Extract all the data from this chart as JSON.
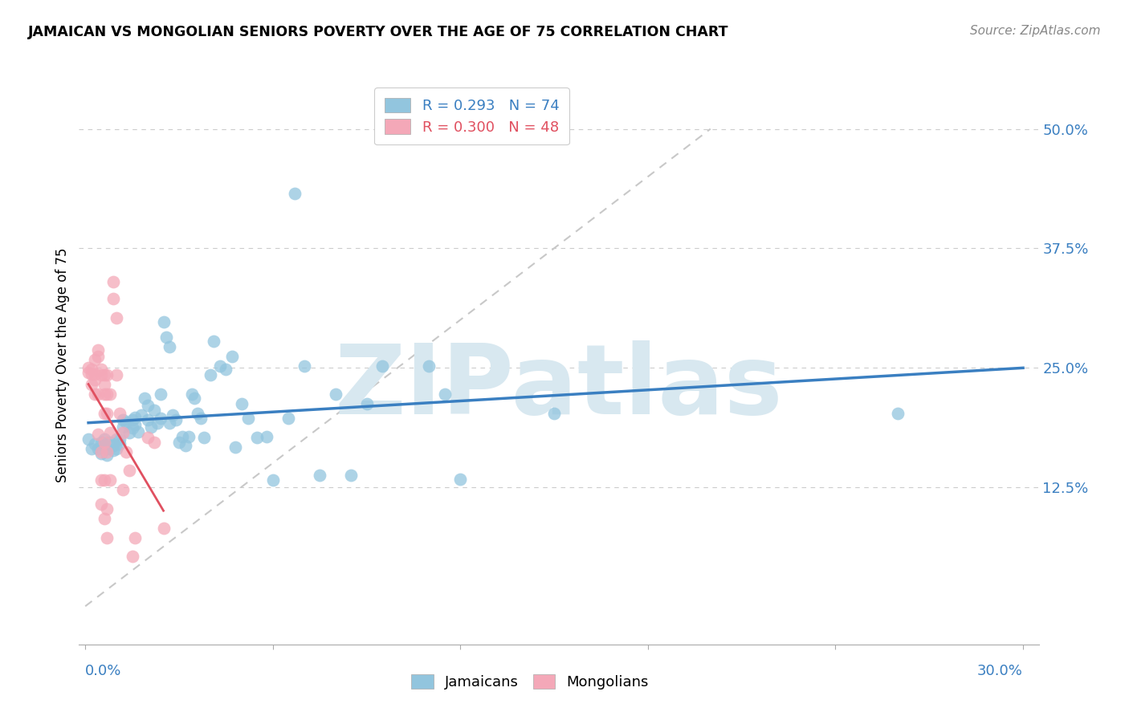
{
  "title": "JAMAICAN VS MONGOLIAN SENIORS POVERTY OVER THE AGE OF 75 CORRELATION CHART",
  "source": "Source: ZipAtlas.com",
  "ylabel": "Seniors Poverty Over the Age of 75",
  "ytick_vals": [
    0.125,
    0.25,
    0.375,
    0.5
  ],
  "ytick_labels": [
    "12.5%",
    "25.0%",
    "37.5%",
    "50.0%"
  ],
  "xlim": [
    -0.002,
    0.305
  ],
  "ylim": [
    -0.04,
    0.545
  ],
  "jamaicans_color": "#92c5de",
  "mongolians_color": "#f4a8b8",
  "trend_j_color": "#3a7fc1",
  "trend_m_color": "#e05060",
  "diag_color": "#c8c8c8",
  "watermark": "ZIPatlas",
  "watermark_color": "#d8e8f0",
  "jamaicans": [
    [
      0.001,
      0.175
    ],
    [
      0.002,
      0.165
    ],
    [
      0.003,
      0.17
    ],
    [
      0.004,
      0.165
    ],
    [
      0.005,
      0.172
    ],
    [
      0.005,
      0.16
    ],
    [
      0.006,
      0.168
    ],
    [
      0.006,
      0.175
    ],
    [
      0.007,
      0.165
    ],
    [
      0.007,
      0.158
    ],
    [
      0.008,
      0.172
    ],
    [
      0.009,
      0.168
    ],
    [
      0.009,
      0.163
    ],
    [
      0.01,
      0.175
    ],
    [
      0.01,
      0.165
    ],
    [
      0.011,
      0.175
    ],
    [
      0.011,
      0.17
    ],
    [
      0.012,
      0.195
    ],
    [
      0.012,
      0.188
    ],
    [
      0.013,
      0.193
    ],
    [
      0.014,
      0.182
    ],
    [
      0.015,
      0.195
    ],
    [
      0.015,
      0.187
    ],
    [
      0.016,
      0.198
    ],
    [
      0.016,
      0.19
    ],
    [
      0.017,
      0.183
    ],
    [
      0.018,
      0.2
    ],
    [
      0.019,
      0.218
    ],
    [
      0.02,
      0.21
    ],
    [
      0.02,
      0.195
    ],
    [
      0.021,
      0.188
    ],
    [
      0.022,
      0.205
    ],
    [
      0.023,
      0.192
    ],
    [
      0.024,
      0.222
    ],
    [
      0.024,
      0.197
    ],
    [
      0.025,
      0.298
    ],
    [
      0.026,
      0.282
    ],
    [
      0.027,
      0.272
    ],
    [
      0.027,
      0.192
    ],
    [
      0.028,
      0.2
    ],
    [
      0.029,
      0.195
    ],
    [
      0.03,
      0.172
    ],
    [
      0.031,
      0.178
    ],
    [
      0.032,
      0.168
    ],
    [
      0.033,
      0.178
    ],
    [
      0.034,
      0.222
    ],
    [
      0.035,
      0.218
    ],
    [
      0.036,
      0.202
    ],
    [
      0.037,
      0.197
    ],
    [
      0.038,
      0.177
    ],
    [
      0.04,
      0.242
    ],
    [
      0.041,
      0.278
    ],
    [
      0.043,
      0.252
    ],
    [
      0.045,
      0.248
    ],
    [
      0.047,
      0.262
    ],
    [
      0.048,
      0.167
    ],
    [
      0.05,
      0.212
    ],
    [
      0.052,
      0.197
    ],
    [
      0.055,
      0.177
    ],
    [
      0.058,
      0.178
    ],
    [
      0.06,
      0.132
    ],
    [
      0.065,
      0.197
    ],
    [
      0.067,
      0.432
    ],
    [
      0.07,
      0.252
    ],
    [
      0.075,
      0.137
    ],
    [
      0.08,
      0.222
    ],
    [
      0.085,
      0.137
    ],
    [
      0.09,
      0.212
    ],
    [
      0.095,
      0.252
    ],
    [
      0.11,
      0.252
    ],
    [
      0.115,
      0.222
    ],
    [
      0.12,
      0.133
    ],
    [
      0.15,
      0.202
    ],
    [
      0.26,
      0.202
    ]
  ],
  "mongolians": [
    [
      0.001,
      0.25
    ],
    [
      0.001,
      0.245
    ],
    [
      0.002,
      0.248
    ],
    [
      0.002,
      0.243
    ],
    [
      0.002,
      0.232
    ],
    [
      0.003,
      0.258
    ],
    [
      0.003,
      0.243
    ],
    [
      0.003,
      0.237
    ],
    [
      0.003,
      0.222
    ],
    [
      0.004,
      0.268
    ],
    [
      0.004,
      0.262
    ],
    [
      0.004,
      0.222
    ],
    [
      0.004,
      0.18
    ],
    [
      0.005,
      0.248
    ],
    [
      0.005,
      0.242
    ],
    [
      0.005,
      0.162
    ],
    [
      0.005,
      0.132
    ],
    [
      0.005,
      0.107
    ],
    [
      0.006,
      0.242
    ],
    [
      0.006,
      0.232
    ],
    [
      0.006,
      0.222
    ],
    [
      0.006,
      0.202
    ],
    [
      0.006,
      0.172
    ],
    [
      0.006,
      0.132
    ],
    [
      0.006,
      0.092
    ],
    [
      0.007,
      0.242
    ],
    [
      0.007,
      0.222
    ],
    [
      0.007,
      0.202
    ],
    [
      0.007,
      0.162
    ],
    [
      0.007,
      0.102
    ],
    [
      0.007,
      0.072
    ],
    [
      0.008,
      0.222
    ],
    [
      0.008,
      0.182
    ],
    [
      0.008,
      0.132
    ],
    [
      0.009,
      0.34
    ],
    [
      0.009,
      0.322
    ],
    [
      0.01,
      0.302
    ],
    [
      0.01,
      0.242
    ],
    [
      0.011,
      0.202
    ],
    [
      0.012,
      0.182
    ],
    [
      0.012,
      0.122
    ],
    [
      0.013,
      0.162
    ],
    [
      0.014,
      0.142
    ],
    [
      0.015,
      0.052
    ],
    [
      0.016,
      0.072
    ],
    [
      0.02,
      0.177
    ],
    [
      0.022,
      0.172
    ],
    [
      0.025,
      0.082
    ]
  ]
}
